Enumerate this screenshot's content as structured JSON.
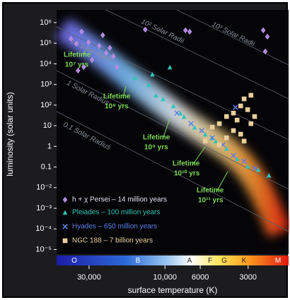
{
  "chart_data": {
    "type": "scatter",
    "x_label": "surface temperature (K)",
    "y_label": "luminosity (solar units)",
    "xlog": true,
    "ylog": true,
    "grid": false,
    "xlim": [
      48000,
      1670
    ],
    "ylim": [
      6e-06,
      3000000
    ],
    "xticks": [
      {
        "value": 30000,
        "label": "30,000"
      },
      {
        "value": 10000,
        "label": "10,000"
      },
      6000,
      3000
    ],
    "yticks": [
      {
        "value": 1000000,
        "label": "10⁶"
      },
      {
        "value": 100000,
        "label": "10⁵"
      },
      {
        "value": 10000,
        "label": "10⁴"
      },
      {
        "value": 1000,
        "label": "10³"
      },
      {
        "value": 100,
        "label": "10²"
      },
      10,
      1,
      0.1,
      {
        "value": 0.01,
        "label": "10⁻²"
      },
      {
        "value": 0.001,
        "label": "10⁻³"
      },
      {
        "value": 0.0001,
        "label": "10⁻⁴"
      },
      {
        "value": 1e-05,
        "label": "10⁻⁵"
      }
    ],
    "spectral_classes": [
      "O",
      "B",
      "A",
      "F",
      "G",
      "K",
      "M"
    ],
    "radius_lines": [
      "10³ Solar Radii",
      "10² Solar Radii",
      "10 Solar Radii",
      "1 Solar Radius",
      "0.1 Solar Radius"
    ],
    "annotations": [
      [
        "Lifetime",
        "10⁷ yrs"
      ],
      [
        "Lifetime",
        "10⁸ yrs"
      ],
      [
        "Lifetime",
        "10⁹ yrs"
      ],
      [
        "Lifetime",
        "10¹⁰ yrs"
      ],
      [
        "Lifetime",
        "10¹¹ yrs"
      ]
    ],
    "series": [
      {
        "name": "h + χ Persei – 14 million years",
        "marker": "diamond",
        "color": "#b48be0",
        "x": [
          39000,
          36000,
          33400,
          30200,
          25900,
          23400,
          22200,
          21100,
          32400,
          28700,
          20000,
          35200,
          24600,
          13300,
          7430,
          6990,
          2410,
          2270,
          2340
        ],
        "values": [
          163000,
          94000,
          360000,
          110000,
          74000,
          34000,
          59000,
          23000,
          6950,
          15400,
          6950,
          4700,
          243000,
          456000,
          420000,
          360000,
          420000,
          208000,
          39700
        ]
      },
      {
        "name": "Pleiades – 100 million years",
        "marker": "triangle",
        "color": "#2fc4b8",
        "x": [
          15500,
          12600,
          10300,
          8850,
          7590,
          6510,
          5580,
          4790,
          4100,
          3520,
          3020,
          2590,
          2220,
          5040,
          7990,
          11400,
          9310,
          12000
        ],
        "values": [
          2130,
          970,
          200,
          91,
          28,
          8.5,
          3.9,
          1.8,
          0.8,
          0.25,
          0.11,
          0.075,
          0.04,
          2.6,
          41,
          300,
          6950,
          3160
        ]
      },
      {
        "name": "Hyades – 650 million years",
        "marker": "cross",
        "color": "#5b7fe8",
        "x": [
          8400,
          6850,
          5870,
          5040,
          4320,
          3710,
          3180,
          2730,
          3600
        ],
        "values": [
          41,
          12.6,
          5.8,
          2.6,
          1.2,
          0.36,
          0.19,
          0.089,
          78
        ]
      },
      {
        "name": "NGC 188 – 7 billion years",
        "marker": "square",
        "color": "#e8cf9a",
        "x": [
          5040,
          4550,
          4100,
          3710,
          3340,
          3180,
          2880,
          3020,
          3710,
          3340,
          3180,
          4100,
          5580,
          4550,
          2880,
          2730,
          3520
        ],
        "values": [
          8.5,
          12.6,
          28,
          41,
          91,
          200,
          300,
          60,
          5.8,
          3.9,
          1.8,
          2.6,
          1.8,
          1.2,
          12.6,
          28,
          18.8
        ]
      }
    ]
  }
}
